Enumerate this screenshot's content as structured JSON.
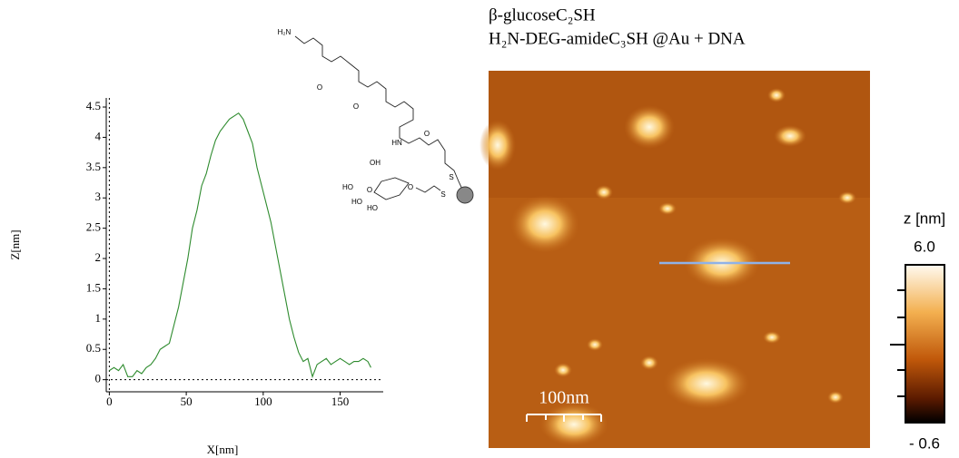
{
  "chart_data": {
    "type": "line",
    "x": [
      0,
      3,
      6,
      9,
      12,
      15,
      18,
      21,
      24,
      27,
      30,
      33,
      36,
      39,
      42,
      45,
      48,
      51,
      54,
      57,
      60,
      63,
      66,
      69,
      72,
      75,
      78,
      81,
      84,
      87,
      90,
      93,
      96,
      99,
      102,
      105,
      108,
      111,
      114,
      117,
      120,
      123,
      126,
      129,
      132,
      135,
      138,
      141,
      144,
      147,
      150,
      153,
      156,
      159,
      162,
      165,
      168,
      170
    ],
    "values": [
      0.15,
      0.2,
      0.15,
      0.25,
      0.05,
      0.05,
      0.15,
      0.1,
      0.2,
      0.25,
      0.35,
      0.5,
      0.55,
      0.6,
      0.9,
      1.2,
      1.6,
      2.0,
      2.5,
      2.8,
      3.2,
      3.4,
      3.7,
      3.95,
      4.1,
      4.2,
      4.3,
      4.35,
      4.4,
      4.3,
      4.1,
      3.9,
      3.5,
      3.2,
      2.9,
      2.6,
      2.2,
      1.8,
      1.4,
      1.0,
      0.7,
      0.45,
      0.3,
      0.35,
      0.05,
      0.25,
      0.3,
      0.35,
      0.25,
      0.3,
      0.35,
      0.3,
      0.25,
      0.3,
      0.3,
      0.35,
      0.3,
      0.2
    ],
    "color": "#2e8b2e",
    "xlabel": "X[nm]",
    "ylabel": "Z[nm]",
    "xlim": [
      -2,
      178
    ],
    "ylim": [
      -0.2,
      4.65
    ],
    "xticks": [
      0,
      50,
      100,
      150
    ],
    "yticks": [
      0,
      0.5,
      1,
      1.5,
      2,
      2.5,
      3,
      3.5,
      4,
      4.5
    ]
  },
  "image": {
    "title_lines": [
      "β-glucoseC₂SH",
      "H₂N-DEG-amideC₃SH @Au + DNA"
    ],
    "scale_bar": "100nm"
  },
  "colorbar": {
    "label": "z [nm]",
    "max": {
      "value": 6.0,
      "label": "6.0"
    },
    "min": {
      "value": -0.6,
      "label": "- 0.6"
    }
  },
  "structure": {
    "labels": [
      "H₂N",
      "O",
      "O",
      "HN",
      "O",
      "S",
      "S",
      "OH",
      "HO",
      "O",
      "O",
      "HO",
      "HO"
    ]
  }
}
